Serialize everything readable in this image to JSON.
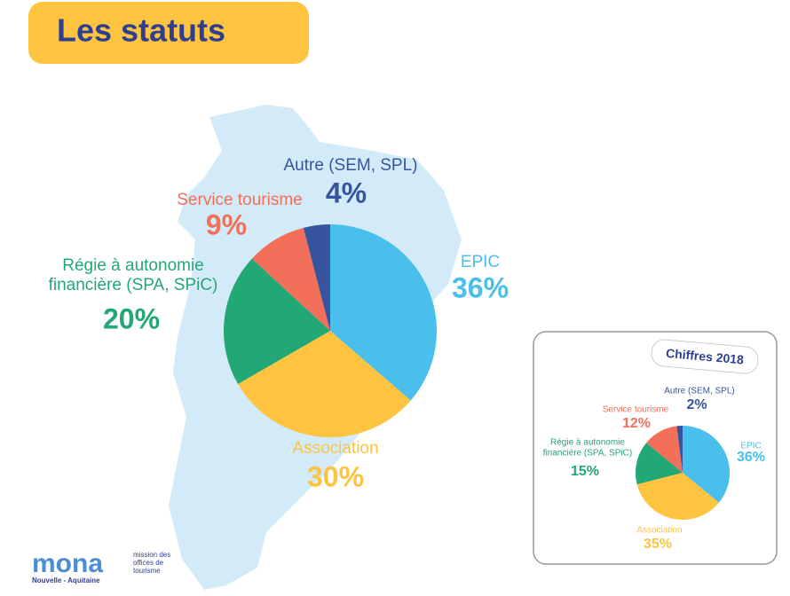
{
  "header": {
    "title": "Les statuts"
  },
  "chart_data": [
    {
      "type": "pie",
      "categories": [
        "EPIC",
        "Association",
        "Régie à autonomie financière (SPA, SPiC)",
        "Service tourisme",
        "Autre (SEM, SPL)"
      ],
      "values": [
        36,
        30,
        20,
        9,
        4
      ],
      "value_labels": [
        "36%",
        "30%",
        "20%",
        "9%",
        "4%"
      ],
      "colors": [
        "#4bbfec",
        "#fec440",
        "#22a874",
        "#f26f5a",
        "#37549e"
      ]
    },
    {
      "type": "pie",
      "title": "Chiffres 2018",
      "categories": [
        "EPIC",
        "Association",
        "Régie à autonomie financière (SPA, SPiC)",
        "Service tourisme",
        "Autre (SEM, SPL)"
      ],
      "values": [
        36,
        35,
        15,
        12,
        2
      ],
      "value_labels": [
        "36%",
        "35%",
        "15%",
        "12%",
        "2%"
      ],
      "colors": [
        "#4bbfec",
        "#fec440",
        "#22a874",
        "#f26f5a",
        "#37549e"
      ]
    }
  ],
  "logo": {
    "name": "mona",
    "tagline": "mission des offices de tourisme",
    "region": "Nouvelle - Aquitaine"
  }
}
